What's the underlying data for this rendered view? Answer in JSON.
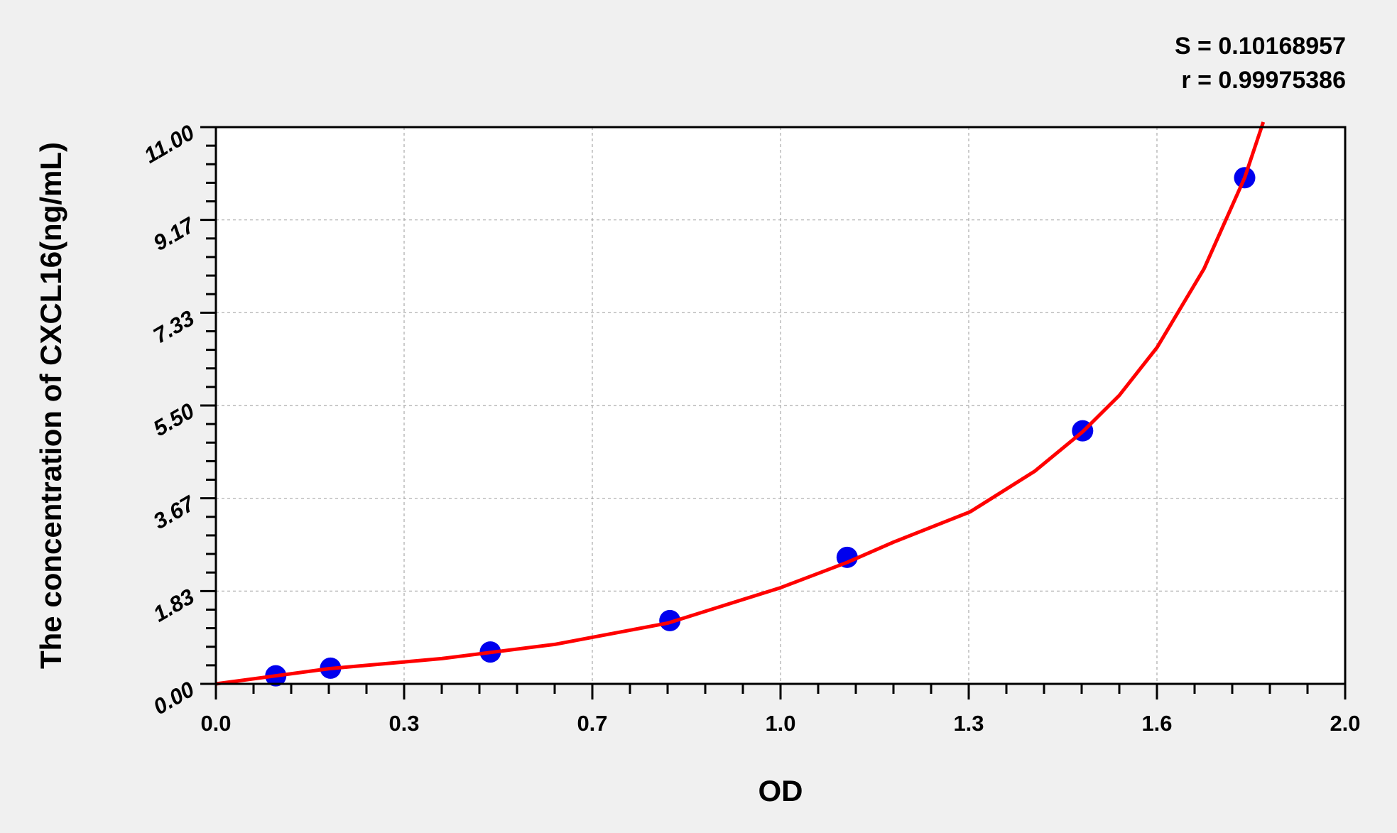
{
  "chart_data": {
    "type": "scatter",
    "title": "",
    "xlabel": "OD",
    "ylabel": "The concentration of CXCL16(ng/mL)",
    "xlim": [
      0,
      2.0
    ],
    "ylim": [
      0,
      11.0
    ],
    "x_ticks": [
      "0.0",
      "0.3",
      "0.7",
      "1.0",
      "1.3",
      "1.6",
      "2.0"
    ],
    "y_ticks": [
      "0.00",
      "1.83",
      "3.67",
      "5.50",
      "7.33",
      "9.17",
      "11.00"
    ],
    "grid": true,
    "annotations": [
      "S = 0.10168957",
      "r = 0.99975386"
    ],
    "points": {
      "x": [
        0.106,
        0.203,
        0.486,
        0.804,
        1.118,
        1.535,
        1.822
      ],
      "y": [
        0.16,
        0.31,
        0.63,
        1.25,
        2.5,
        5.0,
        10.0
      ],
      "color": "#0000ee"
    },
    "fit_curve": {
      "color": "#ff0000",
      "x": [
        0,
        0.2,
        0.4,
        0.6,
        0.8,
        1.0,
        1.118,
        1.2,
        1.336,
        1.45,
        1.535,
        1.6,
        1.667,
        1.75,
        1.822,
        1.855
      ],
      "y": [
        0,
        0.3,
        0.5,
        0.78,
        1.2,
        1.9,
        2.4,
        2.8,
        3.4,
        4.2,
        4.98,
        5.7,
        6.65,
        8.2,
        10.0,
        11.1
      ]
    }
  }
}
